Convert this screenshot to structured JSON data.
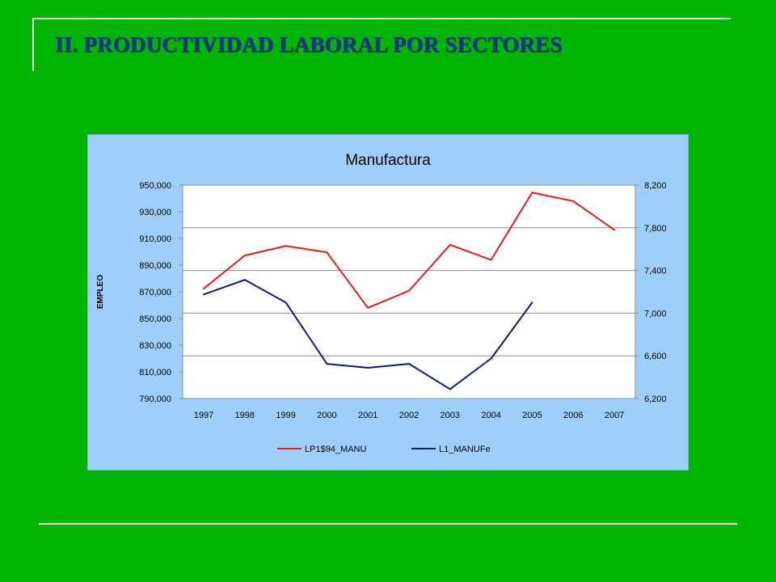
{
  "slide": {
    "title": "II. PRODUCTIVIDAD LABORAL POR SECTORES"
  },
  "colors": {
    "background": "#00b400",
    "title": "#1a2f9c",
    "chart_area": "#9ecffa",
    "plot_area": "#ffffff",
    "series_red": "#e8191b",
    "series_blue": "#0c1a7a"
  },
  "chart_data": {
    "type": "line",
    "title": "Manufactura",
    "ylabel": "EMPLEO",
    "categories": [
      "1997",
      "1998",
      "1999",
      "2000",
      "2001",
      "2002",
      "2003",
      "2004",
      "2005",
      "2006",
      "2007"
    ],
    "y_left": {
      "min": 790000,
      "max": 950000,
      "step": 20000,
      "ticks": [
        "790,000",
        "810,000",
        "830,000",
        "850,000",
        "870,000",
        "890,000",
        "910,000",
        "930,000",
        "950,000"
      ]
    },
    "y_right": {
      "min": 6200,
      "max": 8200,
      "step": 400,
      "ticks": [
        "6,200",
        "6,600",
        "7,000",
        "7,400",
        "7,800",
        "8,200"
      ]
    },
    "grid": true,
    "legend_position": "bottom",
    "series": [
      {
        "name": "LP1$94_MANU",
        "axis": "right",
        "color": "#e8191b",
        "values": [
          7230,
          7540,
          7630,
          7570,
          7050,
          7210,
          7640,
          7500,
          8130,
          8050,
          7780
        ]
      },
      {
        "name": "L1_MANUFe",
        "axis": "left",
        "color": "#0c1a7a",
        "values": [
          868000,
          879000,
          862000,
          816000,
          813000,
          816000,
          797000,
          820000,
          862000,
          null,
          null
        ]
      }
    ]
  }
}
